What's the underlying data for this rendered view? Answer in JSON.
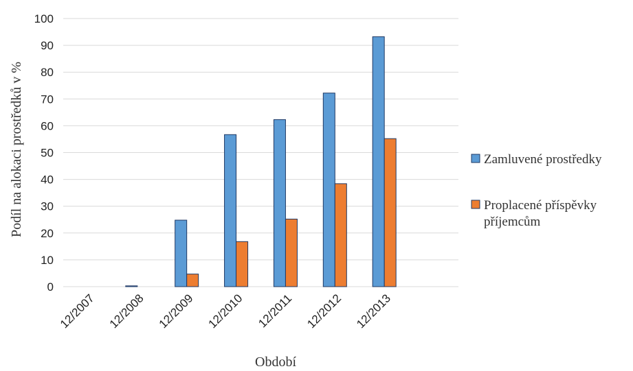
{
  "chart_data": {
    "type": "bar",
    "categories": [
      "12/2007",
      "12/2008",
      "12/2009",
      "12/2010",
      "12/2011",
      "12/2012",
      "12/2013",
      ""
    ],
    "series": [
      {
        "name": "Zamluvené prostředky",
        "values": [
          0,
          0.3,
          24.8,
          56.7,
          62.3,
          72.2,
          93.2,
          null
        ],
        "color": "#5b9bd5"
      },
      {
        "name": "Proplacené příspěvky příjemcům",
        "values": [
          0,
          0,
          4.7,
          16.8,
          25.2,
          38.4,
          55.2,
          null
        ],
        "color": "#ed7d31"
      }
    ],
    "xlabel": "Období",
    "ylabel": "Podíl na alokaci prostředků v %",
    "ylim": [
      0,
      100
    ],
    "yticks": [
      0,
      10,
      20,
      30,
      40,
      50,
      60,
      70,
      80,
      90,
      100
    ],
    "grid": true,
    "legend_position": "right",
    "bar_outline_color": "#1f3864"
  }
}
